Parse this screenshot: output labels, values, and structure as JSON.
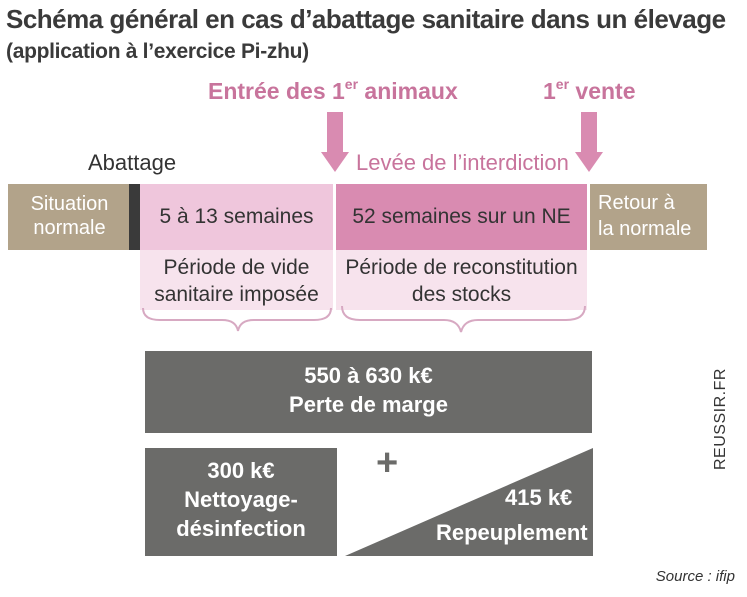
{
  "title": "Schéma général en cas d’abattage sanitaire dans un élevage",
  "subtitle": "(application à l’exercice Pi-zhu)",
  "markers": {
    "entree_main": "Entrée des 1",
    "entree_sup": "er",
    "entree_rest": " animaux",
    "vente_main": "1",
    "vente_sup": "er",
    "vente_rest": " vente"
  },
  "labels": {
    "abattage": "Abattage",
    "levee": "Levée de l’interdiction"
  },
  "timeline": {
    "situation_line1": "Situation",
    "situation_line2": "normale",
    "vide_duration": "5 à 13 semaines",
    "recon_duration": "52 semaines sur un NE",
    "retour_line1": "Retour à",
    "retour_line2": "la normale"
  },
  "phases": {
    "vide_line1": "Période de vide",
    "vide_line2": "sanitaire imposée",
    "recon_line1": "Période de reconstitution",
    "recon_line2": "des stocks"
  },
  "costs": {
    "perte_value": "550 à 630 k€",
    "perte_label": "Perte de marge",
    "nettoyage_value": "300 k€",
    "nettoyage_line1": "Nettoyage-",
    "nettoyage_line2": "désinfection",
    "plus": "+",
    "repeup_value": "415 k€",
    "repeup_label": "Repeuplement"
  },
  "source": "Source : ifip",
  "credit": "REUSSIR.FR",
  "colors": {
    "beige": "#b2a38a",
    "light_pink": "#efc6dc",
    "pink": "#d98bb1",
    "pale_pink": "#f7e3ed",
    "accent_text": "#c8749c",
    "grey": "#6b6b69"
  }
}
